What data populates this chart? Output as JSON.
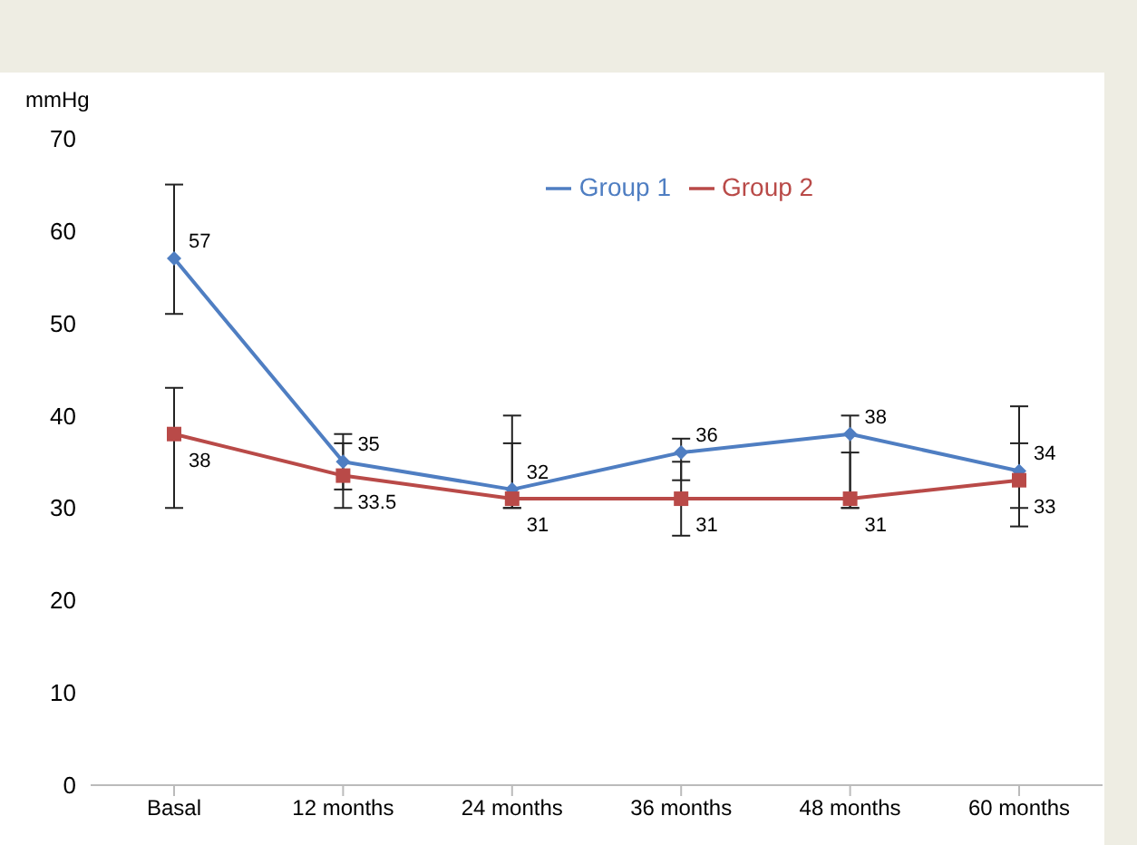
{
  "chart_data": {
    "type": "line",
    "ylabel": "mmHg",
    "categories": [
      "Basal",
      "12 months",
      "24 months",
      "36 months",
      "48 months",
      "60 months"
    ],
    "series": [
      {
        "name": "Group 1",
        "color": "#4f7ec2",
        "marker": "diamond",
        "values": [
          57,
          35,
          32,
          36,
          38,
          34
        ],
        "errors": [
          [
            51,
            65
          ],
          [
            32,
            38
          ],
          [
            30,
            40
          ],
          [
            33,
            37.5
          ],
          [
            30,
            40
          ],
          [
            28,
            41
          ]
        ]
      },
      {
        "name": "Group 2",
        "color": "#b94a48",
        "marker": "square",
        "values": [
          38,
          33.5,
          31,
          31,
          31,
          33
        ],
        "errors": [
          [
            30,
            43
          ],
          [
            30,
            37
          ],
          [
            30,
            37
          ],
          [
            27,
            35
          ],
          [
            30,
            36
          ],
          [
            30,
            37
          ]
        ]
      }
    ],
    "ylim": [
      0,
      70
    ],
    "yticks": [
      0,
      10,
      20,
      30,
      40,
      50,
      60,
      70
    ],
    "grid": false,
    "legend": "top",
    "data_labels": true,
    "line_style": "solid"
  }
}
